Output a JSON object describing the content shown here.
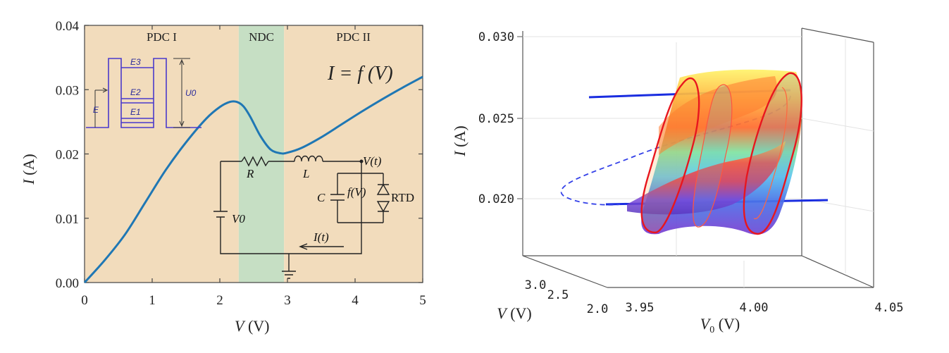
{
  "chart_data": [
    {
      "type": "line",
      "xlabel_var": "V",
      "xlabel_unit": " (V)",
      "ylabel_var": "I",
      "ylabel_unit": " (A)",
      "xlim": [
        0,
        5
      ],
      "ylim": [
        0,
        0.04
      ],
      "x_ticks": [
        "0",
        "1",
        "2",
        "3",
        "4",
        "5"
      ],
      "y_ticks": [
        "0.00",
        "0.01",
        "0.02",
        "0.03",
        "0.04"
      ],
      "regions": [
        {
          "label": "PDC I",
          "from": 0,
          "to": 2.28,
          "color": "#f2dcbc"
        },
        {
          "label": "NDC",
          "from": 2.28,
          "to": 2.95,
          "color": "#c6dfc4"
        },
        {
          "label": "PDC II",
          "from": 2.95,
          "to": 5,
          "color": "#f2dcbc"
        }
      ],
      "series": [
        {
          "color": "#1f77b4",
          "x": [
            0,
            0.3,
            0.6,
            0.9,
            1.2,
            1.5,
            1.8,
            2.0,
            2.15,
            2.25,
            2.35,
            2.45,
            2.6,
            2.75,
            2.9,
            3.0,
            3.2,
            3.5,
            3.8,
            4.1,
            4.4,
            4.7,
            5.0
          ],
          "y": [
            0,
            0.0035,
            0.0075,
            0.0125,
            0.0175,
            0.0218,
            0.0255,
            0.0273,
            0.0281,
            0.0281,
            0.0274,
            0.0258,
            0.0228,
            0.0207,
            0.0201,
            0.0202,
            0.0209,
            0.0226,
            0.0246,
            0.0266,
            0.0285,
            0.0303,
            0.032
          ]
        }
      ],
      "curve_label": "I = f (V)",
      "inset_levels": [
        "E3",
        "E2",
        "E1"
      ],
      "inset_labels": {
        "energy": "E",
        "barrier": "U0"
      },
      "circuit_labels": {
        "resistor": "R",
        "inductor": "L",
        "node": "V(t)",
        "capacitor": "C",
        "device_fn": "f(V)",
        "device": "RTD",
        "source": "V0",
        "current": "I(t)"
      }
    },
    {
      "type": "line",
      "xlabel_var": "V0",
      "xlabel_unit": " (V)",
      "ylabel_var": "I",
      "ylabel_unit": " (A)",
      "zlabel_var": "V",
      "zlabel_unit": " (V)",
      "x_ticks": [
        "3.95",
        "4.00",
        "4.05"
      ],
      "y_ticks": [
        "0.020",
        "0.025",
        "0.030"
      ],
      "z_ticks": [
        "3.0",
        "2.5",
        "2.0"
      ]
    }
  ]
}
